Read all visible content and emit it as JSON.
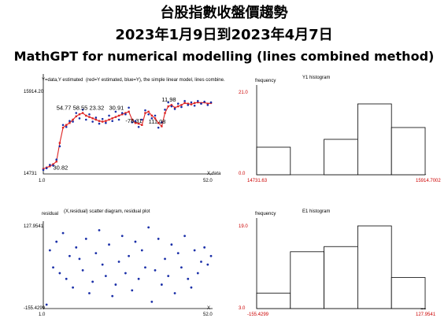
{
  "header": {
    "title": "台股指數收盤價趨勢",
    "date_range": "2023年1月9日到2023年4月7日",
    "subtitle": "MathGPT for numerical modelling (lines combined method)"
  },
  "colors": {
    "estimated": "#dd2222",
    "data": "#1a2fa8",
    "axis": "#000000",
    "red_tick": "#cc0000"
  },
  "chart_data": [
    {
      "type": "line",
      "ylabel": "Y=data,Y estimated",
      "legend_note": "(red=Y estimated, blue=Y), the simple linear model, lines combine.",
      "xlabel": "X,data",
      "xlim": [
        1.0,
        52.0
      ],
      "ylim": [
        14731,
        15914.2
      ],
      "x_ticks": [
        "1.0",
        "52.0"
      ],
      "y_ticks": [
        "14731",
        "15914.20"
      ],
      "annotations": [
        {
          "text": "54.77",
          "x": 5,
          "y": 15650
        },
        {
          "text": "58.55",
          "x": 10,
          "y": 15650
        },
        {
          "text": "23.32",
          "x": 15,
          "y": 15650
        },
        {
          "text": "30.91",
          "x": 21,
          "y": 15650
        },
        {
          "text": "-78.31",
          "x": 26,
          "y": 15450
        },
        {
          "text": "111.08",
          "x": 33,
          "y": 15440
        },
        {
          "text": "11.98",
          "x": 37,
          "y": 15770
        },
        {
          "text": "30.82",
          "x": 4,
          "y": 14750
        }
      ],
      "series": [
        {
          "name": "red=Y estimated",
          "x": [
            1,
            2,
            3,
            4,
            5,
            6,
            7,
            8,
            9,
            10,
            11,
            12,
            13,
            14,
            15,
            16,
            17,
            18,
            19,
            20,
            21,
            22,
            23,
            24,
            25,
            26,
            27,
            28,
            29,
            30,
            31,
            32,
            33,
            34,
            35,
            36,
            37,
            38,
            39,
            40,
            41,
            42,
            43,
            44,
            45,
            46,
            47,
            48,
            49,
            50,
            51,
            52
          ],
          "y": [
            14760,
            14780,
            14800,
            14830,
            14870,
            15150,
            15380,
            15420,
            15450,
            15500,
            15550,
            15580,
            15600,
            15560,
            15540,
            15520,
            15500,
            15480,
            15470,
            15480,
            15500,
            15520,
            15540,
            15560,
            15580,
            15600,
            15620,
            15500,
            15450,
            15440,
            15420,
            15600,
            15620,
            15560,
            15520,
            15450,
            15400,
            15600,
            15700,
            15720,
            15680,
            15700,
            15720,
            15750,
            15740,
            15730,
            15750,
            15760,
            15750,
            15760,
            15740,
            15750
          ]
        },
        {
          "name": "blue=Y",
          "x": [
            1,
            2,
            3,
            4,
            5,
            6,
            7,
            8,
            9,
            10,
            11,
            12,
            13,
            14,
            15,
            16,
            17,
            18,
            19,
            20,
            21,
            22,
            23,
            24,
            25,
            26,
            27,
            28,
            29,
            30,
            31,
            32,
            33,
            34,
            35,
            36,
            37,
            38,
            39,
            40,
            41,
            42,
            43,
            44,
            45,
            46,
            47,
            48,
            49,
            50,
            51,
            52
          ],
          "y": [
            14745,
            14770,
            14820,
            14810,
            14900,
            15100,
            15420,
            15390,
            15480,
            15470,
            15600,
            15520,
            15650,
            15500,
            15580,
            15470,
            15530,
            15440,
            15510,
            15450,
            15560,
            15480,
            15620,
            15500,
            15600,
            15580,
            15680,
            15460,
            15480,
            15390,
            15500,
            15640,
            15580,
            15520,
            15560,
            15380,
            15460,
            15650,
            15760,
            15700,
            15660,
            15740,
            15690,
            15780,
            15720,
            15760,
            15710,
            15780,
            15740,
            15770,
            15720,
            15760
          ]
        }
      ]
    },
    {
      "type": "bar",
      "title": "Y1 histogram",
      "ylabel": "frequency",
      "xlabel": "Y1",
      "x_ticks": [
        "14731.63",
        "15914.7002"
      ],
      "y_ticks": [
        "0.0",
        "21.0"
      ],
      "ylim": [
        0,
        21
      ],
      "values": [
        7,
        0,
        9,
        18,
        12
      ]
    },
    {
      "type": "scatter",
      "title": "(X,residual) scatter diagram, residual plot",
      "ylabel": "residual",
      "xlabel": "X",
      "xlim": [
        1.0,
        52.0
      ],
      "ylim": [
        -155.4299,
        127.9541
      ],
      "x_ticks": [
        "1.0",
        "52.0"
      ],
      "y_ticks": [
        "-155.4299",
        "127.9541"
      ],
      "x": [
        2,
        3,
        4,
        5,
        6,
        7,
        8,
        9,
        10,
        11,
        12,
        13,
        14,
        15,
        16,
        17,
        18,
        19,
        20,
        21,
        22,
        23,
        24,
        25,
        26,
        27,
        28,
        29,
        30,
        31,
        32,
        33,
        34,
        35,
        36,
        37,
        38,
        39,
        40,
        41,
        42,
        43,
        44,
        45,
        46,
        47,
        48,
        49,
        50,
        51,
        52
      ],
      "y": [
        -150,
        40,
        -20,
        70,
        -40,
        100,
        -60,
        20,
        -90,
        50,
        10,
        -30,
        80,
        -110,
        -70,
        30,
        110,
        -10,
        -50,
        60,
        -120,
        -80,
        0,
        90,
        -40,
        20,
        -100,
        70,
        -60,
        40,
        -20,
        120,
        -140,
        -30,
        80,
        -80,
        10,
        -50,
        60,
        -110,
        30,
        -20,
        90,
        -60,
        -90,
        40,
        -40,
        0,
        50,
        -10,
        20
      ]
    },
    {
      "type": "bar",
      "title": "E1 histogram",
      "ylabel": "frequency",
      "xlabel": "E1",
      "x_ticks": [
        "-155.4299",
        "127.9541"
      ],
      "y_ticks": [
        "3.0",
        "19.0"
      ],
      "ylim": [
        3,
        19
      ],
      "values": [
        6,
        14,
        15,
        19,
        9
      ]
    }
  ]
}
